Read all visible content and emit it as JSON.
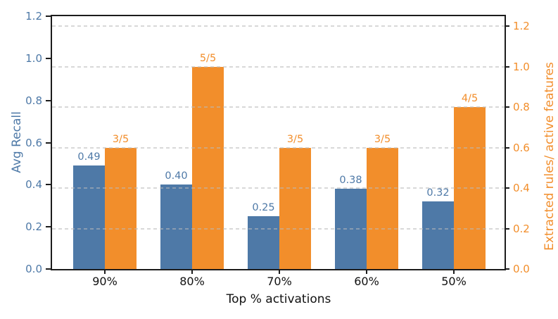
{
  "chart_data": {
    "type": "bar",
    "title": "",
    "categories": [
      "90%",
      "80%",
      "70%",
      "60%",
      "50%"
    ],
    "series": [
      {
        "name": "Avg Recall",
        "axis": "left",
        "color": "#4E79A7",
        "values": [
          0.49,
          0.4,
          0.25,
          0.38,
          0.32
        ],
        "bar_labels": [
          "0.49",
          "0.40",
          "0.25",
          "0.38",
          "0.32"
        ]
      },
      {
        "name": "Extracted rules/ active features",
        "axis": "right",
        "color": "#F28E2B",
        "values": [
          0.6,
          1.0,
          0.6,
          0.6,
          0.8
        ],
        "bar_labels": [
          "3/5",
          "5/5",
          "3/5",
          "3/5",
          "4/5"
        ]
      }
    ],
    "xlabel": "Top % activations",
    "ylabel_left": "Avg Recall",
    "ylabel_right": "Extracted rules/ active features",
    "left_ylim": [
      0,
      1.2
    ],
    "right_ylim": [
      0,
      1.25
    ],
    "left_tick_labels": [
      "0.0",
      "0.2",
      "0.4",
      "0.6",
      "0.8",
      "1.0",
      "1.2"
    ],
    "right_tick_labels": [
      "0.0",
      "0.2",
      "0.4",
      "0.6",
      "0.8",
      "1.0",
      "1.2"
    ],
    "grid": {
      "axis": "y",
      "style": "dashed",
      "aligned_to": "right_ticks"
    },
    "legend": "none"
  },
  "colors": {
    "left_axis_text": "#4E79A7",
    "right_axis_text": "#F28E2B",
    "x_axis_text": "#111111",
    "spine": "#1c1c1c",
    "gridline": "#bdbdbd",
    "background": "#ffffff"
  }
}
